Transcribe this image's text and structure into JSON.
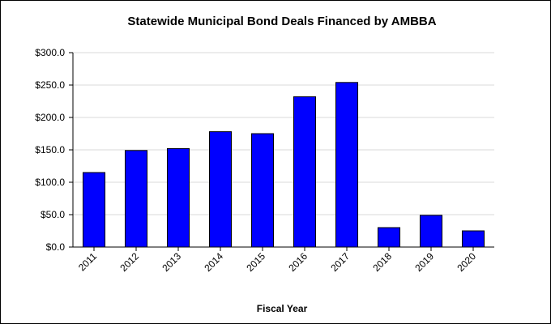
{
  "chart_data": {
    "type": "bar",
    "title": "Statewide Municipal Bond Deals Financed by AMBBA",
    "xlabel": "Fiscal Year",
    "ylabel": "",
    "categories": [
      "2011",
      "2012",
      "2013",
      "2014",
      "2015",
      "2016",
      "2017",
      "2018",
      "2019",
      "2020"
    ],
    "values": [
      115,
      149,
      152,
      178,
      175,
      232,
      254,
      30,
      49,
      25
    ],
    "ylim": [
      0,
      300
    ],
    "yticks": [
      0,
      50,
      100,
      150,
      200,
      250,
      300
    ],
    "ytick_labels": [
      "$0.0",
      "$50.0",
      "$100.0",
      "$150.0",
      "$200.0",
      "$250.0",
      "$300.0"
    ],
    "bar_color": "#0000ff",
    "grid": true,
    "legend": "none"
  }
}
